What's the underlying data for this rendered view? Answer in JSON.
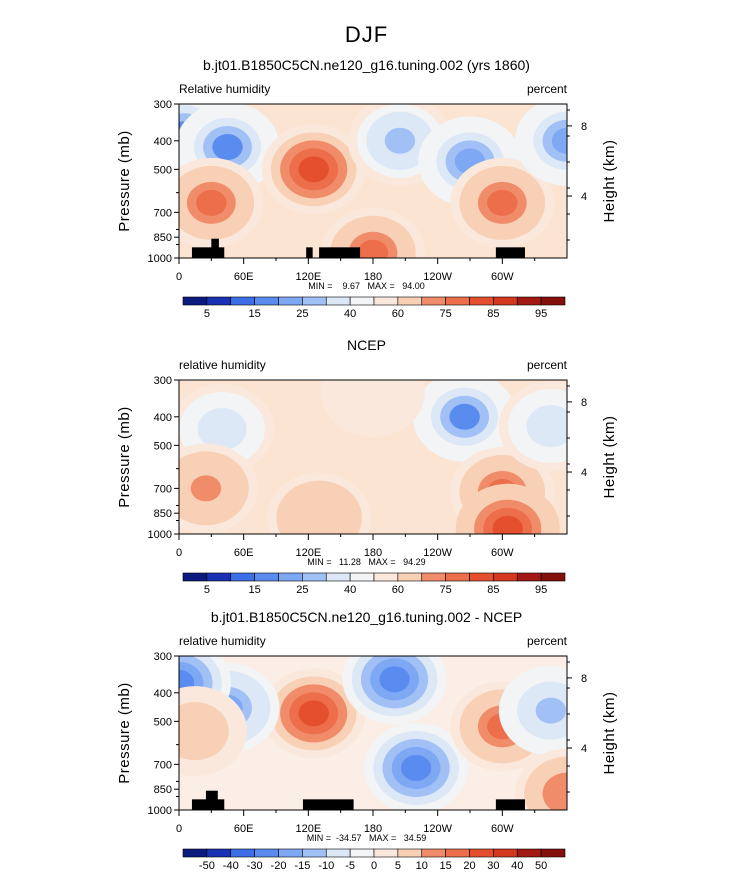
{
  "page_title": "DJF",
  "colors": {
    "diverging_21": [
      "#0a1a7e",
      "#1932b4",
      "#2850d8",
      "#3c6ee6",
      "#5a8cf0",
      "#7ea8f4",
      "#a0c0f6",
      "#c4d8f8",
      "#dde8f7",
      "#f2f4f6",
      "#fbe8dc",
      "#f8d0b6",
      "#f4b090",
      "#f08c6a",
      "#ec6e4a",
      "#e4502e",
      "#d4381e",
      "#be2418",
      "#a21812",
      "#84100e"
    ],
    "terrain": "#000000"
  },
  "chart_data": [
    {
      "type": "heatmap",
      "title": "b.jt01.B1850C5CN.ne120_g16.tuning.002 (yrs 1860)",
      "left_label": "Relative humidity",
      "right_label": "percent",
      "ylabel": "Pressure (mb)",
      "ylabel_right": "Height (km)",
      "y_ticks": [
        "300",
        "400",
        "500",
        "700",
        "850",
        "1000"
      ],
      "y_tick_values": [
        300,
        400,
        500,
        700,
        850,
        1000
      ],
      "y_right_ticks": [
        "8",
        "4"
      ],
      "x_ticks": [
        "0",
        "60E",
        "120E",
        "180",
        "120W",
        "60W"
      ],
      "x_tick_values": [
        0,
        60,
        120,
        180,
        240,
        300
      ],
      "xlim": [
        0,
        360
      ],
      "ylim": [
        1000,
        300
      ],
      "stats": "MIN =    9.67   MAX =   94.00",
      "colorbar_labels": [
        "5",
        "15",
        "25",
        "40",
        "60",
        "75",
        "85",
        "95"
      ],
      "colorbar_levels": [
        5,
        10,
        15,
        20,
        25,
        30,
        40,
        50,
        60,
        70,
        75,
        80,
        85,
        90,
        95
      ],
      "terrain": [
        {
          "lon": [
            12,
            42
          ],
          "p": 920
        },
        {
          "lon": [
            30,
            37
          ],
          "p": 860
        },
        {
          "lon": [
            118,
            124
          ],
          "p": 920
        },
        {
          "lon": [
            130,
            168
          ],
          "p": 920
        },
        {
          "lon": [
            294,
            321
          ],
          "p": 920
        }
      ],
      "features": [
        {
          "lon": 5,
          "p": 380,
          "value": 12
        },
        {
          "lon": 45,
          "p": 420,
          "value": 10
        },
        {
          "lon": 30,
          "p": 650,
          "value": 80
        },
        {
          "lon": 125,
          "p": 500,
          "value": 88
        },
        {
          "lon": 205,
          "p": 400,
          "value": 22
        },
        {
          "lon": 270,
          "p": 470,
          "value": 15
        },
        {
          "lon": 300,
          "p": 650,
          "value": 82
        },
        {
          "lon": 360,
          "p": 400,
          "value": 15
        },
        {
          "lon": 180,
          "p": 960,
          "value": 84
        }
      ]
    },
    {
      "type": "heatmap",
      "title": "NCEP",
      "left_label": "relative humidity",
      "right_label": "percent",
      "ylabel": "Pressure (mb)",
      "ylabel_right": "Height (km)",
      "y_ticks": [
        "300",
        "400",
        "500",
        "700",
        "850",
        "1000"
      ],
      "y_tick_values": [
        300,
        400,
        500,
        700,
        850,
        1000
      ],
      "y_right_ticks": [
        "8",
        "4"
      ],
      "x_ticks": [
        "0",
        "60E",
        "120E",
        "180",
        "120W",
        "60W"
      ],
      "x_tick_values": [
        0,
        60,
        120,
        180,
        240,
        300
      ],
      "xlim": [
        0,
        360
      ],
      "ylim": [
        1000,
        300
      ],
      "stats": "MIN =   11.28   MAX =   94.29",
      "colorbar_labels": [
        "5",
        "15",
        "25",
        "40",
        "60",
        "75",
        "85",
        "95"
      ],
      "colorbar_levels": [
        5,
        10,
        15,
        20,
        25,
        30,
        40,
        50,
        60,
        70,
        75,
        80,
        85,
        90,
        95
      ],
      "terrain": [],
      "features": [
        {
          "lon": 40,
          "p": 440,
          "value": 25
        },
        {
          "lon": 265,
          "p": 400,
          "value": 12
        },
        {
          "lon": 300,
          "p": 720,
          "value": 82
        },
        {
          "lon": 25,
          "p": 700,
          "value": 75
        },
        {
          "lon": 130,
          "p": 880,
          "value": 72
        },
        {
          "lon": 345,
          "p": 430,
          "value": 30
        },
        {
          "lon": 180,
          "p": 330,
          "value": 55
        },
        {
          "lon": 305,
          "p": 960,
          "value": 90
        }
      ]
    },
    {
      "type": "heatmap",
      "title": "b.jt01.B1850C5CN.ne120_g16.tuning.002 - NCEP",
      "left_label": "relative humidity",
      "right_label": "percent",
      "ylabel": "Pressure (mb)",
      "ylabel_right": "Height (km)",
      "y_ticks": [
        "300",
        "400",
        "500",
        "700",
        "850",
        "1000"
      ],
      "y_tick_values": [
        300,
        400,
        500,
        700,
        850,
        1000
      ],
      "y_right_ticks": [
        "8",
        "4"
      ],
      "x_ticks": [
        "0",
        "60E",
        "120E",
        "180",
        "120W",
        "60W"
      ],
      "x_tick_values": [
        0,
        60,
        120,
        180,
        240,
        300
      ],
      "xlim": [
        0,
        360
      ],
      "ylim": [
        1000,
        300
      ],
      "stats": "MIN =  -34.57   MAX =   34.59",
      "colorbar_labels": [
        "-50",
        "-40",
        "-30",
        "-20",
        "-15",
        "-10",
        "-5",
        "0",
        "5",
        "10",
        "15",
        "20",
        "30",
        "40",
        "50"
      ],
      "colorbar_levels": [
        -50,
        -40,
        -30,
        -20,
        -15,
        -10,
        -5,
        0,
        5,
        10,
        15,
        20,
        30,
        40,
        50
      ],
      "terrain": [
        {
          "lon": [
            12,
            42
          ],
          "p": 920
        },
        {
          "lon": [
            25,
            36
          ],
          "p": 860
        },
        {
          "lon": [
            115,
            162
          ],
          "p": 920
        },
        {
          "lon": [
            294,
            321
          ],
          "p": 920
        }
      ],
      "features": [
        {
          "lon": 125,
          "p": 470,
          "value": 30
        },
        {
          "lon": 200,
          "p": 360,
          "value": -30
        },
        {
          "lon": 220,
          "p": 720,
          "value": -28
        },
        {
          "lon": 45,
          "p": 450,
          "value": -20
        },
        {
          "lon": 0,
          "p": 370,
          "value": -25
        },
        {
          "lon": 300,
          "p": 520,
          "value": 20
        },
        {
          "lon": 345,
          "p": 460,
          "value": -15
        },
        {
          "lon": 360,
          "p": 880,
          "value": 18
        },
        {
          "lon": 15,
          "p": 540,
          "value": 12
        }
      ]
    }
  ]
}
